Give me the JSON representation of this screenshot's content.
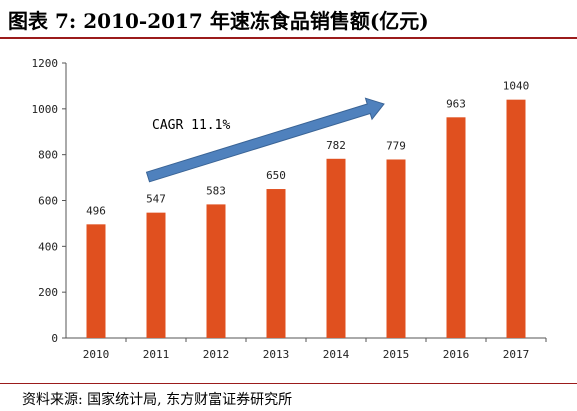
{
  "header": {
    "title": "图表 7: 2010-2017 年速冻食品销售额(亿元)"
  },
  "footer": {
    "source": "资料来源: 国家统计局, 东方财富证券研究所"
  },
  "colors": {
    "bar": "#e0501f",
    "arrow": "#4f81bd",
    "rule": "#9b1b1b"
  },
  "chart_data": {
    "type": "bar",
    "categories": [
      "2010",
      "2011",
      "2012",
      "2013",
      "2014",
      "2015",
      "2016",
      "2017"
    ],
    "values": [
      496,
      547,
      583,
      650,
      782,
      779,
      963,
      1040
    ],
    "ylim": [
      0,
      1200
    ],
    "yticks": [
      "0",
      "200",
      "400",
      "600",
      "800",
      "1000",
      "1200"
    ],
    "grid": false,
    "annotation": {
      "text": "CAGR 11.1%",
      "arrow": "upward trend arrow from 2011 to 2015"
    }
  }
}
